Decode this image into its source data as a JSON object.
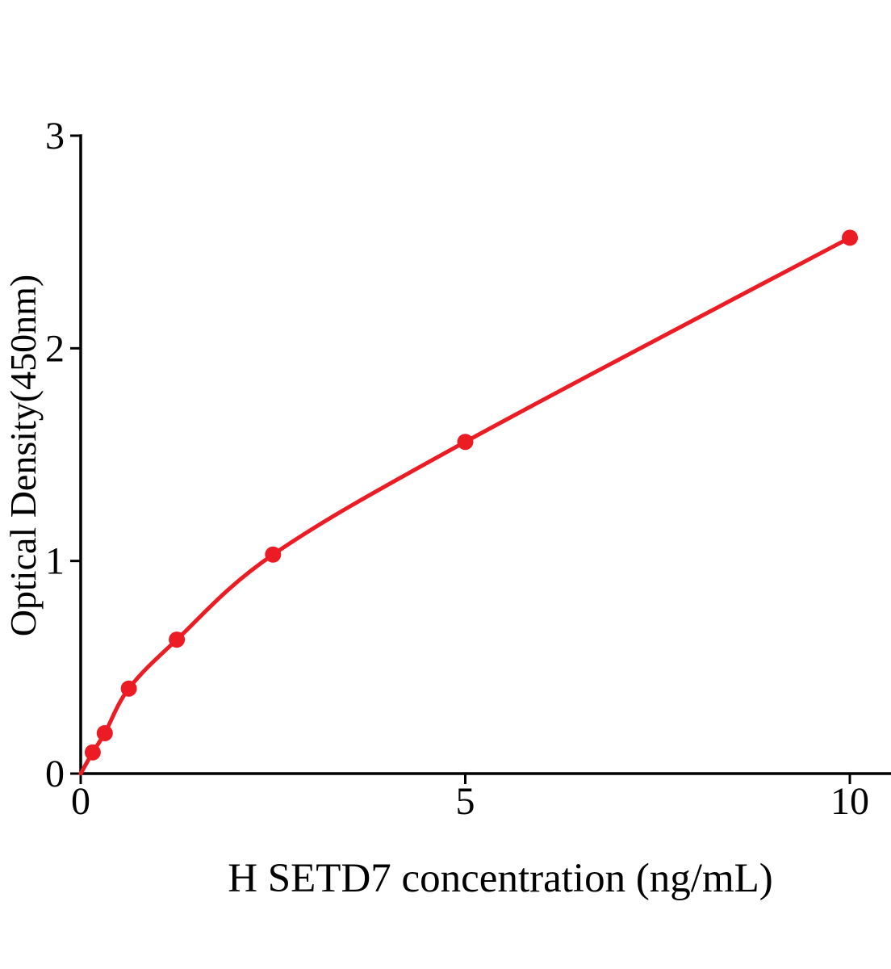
{
  "chart_data": {
    "type": "scatter",
    "xlabel": "H SETD7 concentration (ng/mL)",
    "ylabel": "Optical Density(450nm)",
    "x": [
      0.156,
      0.313,
      0.625,
      1.25,
      2.5,
      5,
      10
    ],
    "y": [
      0.1,
      0.19,
      0.4,
      0.63,
      1.03,
      1.56,
      2.52
    ],
    "curve_origin": {
      "x": 0,
      "y": 0
    },
    "x_ticks": [
      0,
      5,
      10
    ],
    "y_ticks": [
      0,
      1,
      2,
      3
    ],
    "xlim": [
      0,
      10.55
    ],
    "ylim": [
      0,
      3
    ],
    "grid": false,
    "legend": "none",
    "marker_shape": "circle",
    "line_style": "solid",
    "colors": {
      "series": "#EC1C24",
      "axis": "#000000",
      "text": "#000000",
      "background": "#FFFFFF"
    }
  }
}
